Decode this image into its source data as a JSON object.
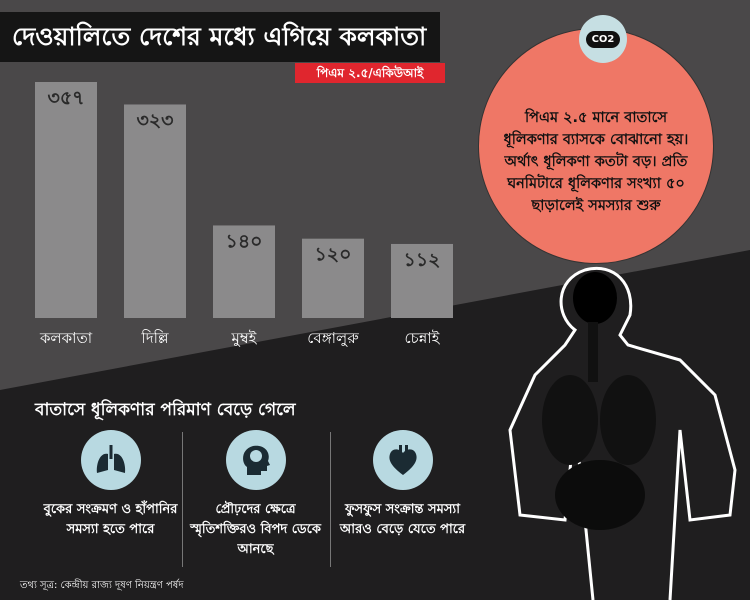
{
  "title": "দেওয়ালিতে দেশের মধ্যে এগিয়ে কলকাতা",
  "unit_label": "পিএম ২.৫/একিউআই",
  "chart_data": {
    "type": "bar",
    "title": "দেওয়ালিতে দেশের মধ্যে এগিয়ে কলকাতা",
    "ylabel": "পিএম ২.৫/একিউআই",
    "categories": [
      "কলকাতা",
      "দিল্লি",
      "মুম্বই",
      "বেঙ্গালুরু",
      "চেন্নাই"
    ],
    "values": [
      357,
      323,
      140,
      120,
      112
    ],
    "value_labels": [
      "৩৫৭",
      "৩২৩",
      "১৪০",
      "১২০",
      "১১২"
    ],
    "ylim": [
      0,
      357
    ],
    "grid": false,
    "bar_color": "#8b8a8b"
  },
  "info": {
    "badge": "CO2",
    "text": "পিএম ২.৫ মানে বাতাসে ধূলিকণার ব্যাসকে বোঝানো হয়। অর্থাৎ ধূলিকণা কতটা বড়। প্রতি ঘনমিটারে ধূলিকণার সংখ্যা ৫০ ছাড়ালেই সমস্যার শুরু",
    "color": "#ef7766"
  },
  "effects": {
    "heading": "বাতাসে ধূলিকণার পরিমাণ বেড়ে গেলে",
    "items": [
      {
        "icon": "lungs-icon",
        "text": "বুকের সংক্রমণ ও হাঁপানির সমস্যা হতে পারে"
      },
      {
        "icon": "brain-head-icon",
        "text": "প্রৌঢ়দের ক্ষেত্রে স্মৃতিশক্তিরও বিপদ ডেকে আনছে"
      },
      {
        "icon": "heart-icon",
        "text": "ফুসফুস সংক্রান্ত সমস্যা আরও বেড়ে যেতে পারে"
      }
    ]
  },
  "source": "তথ্য সূত্র: কেন্দ্রীয় রাজ্য দূষণ নিয়ন্ত্রণ পর্ষদ"
}
